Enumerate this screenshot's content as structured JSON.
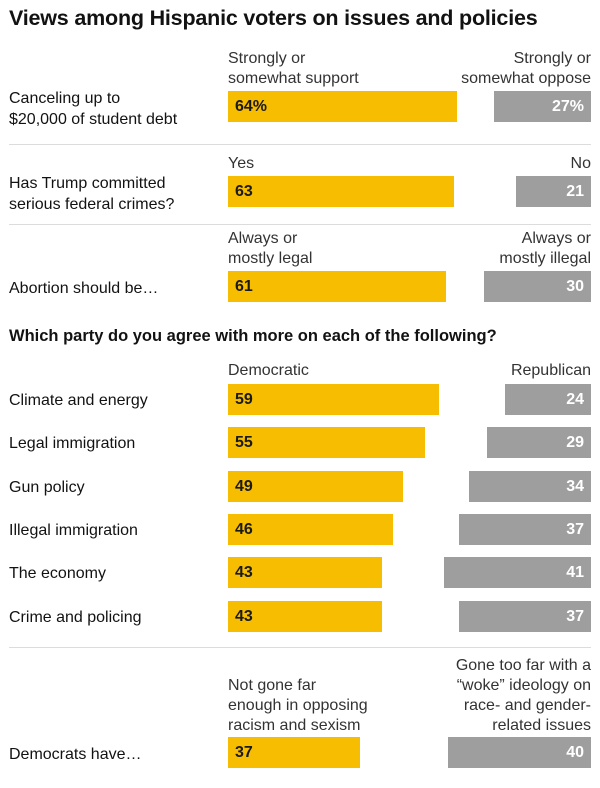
{
  "title": "Views among Hispanic voters on issues and policies",
  "colors": {
    "support": "#f7bd00",
    "oppose": "#9e9e9e",
    "oppose_text": "#ffffff"
  },
  "chart_data": {
    "type": "bar",
    "sections": [
      {
        "questions": [
          {
            "label": [
              "Canceling up to",
              "$20,000 of student debt"
            ],
            "left_header": [
              "Strongly or",
              "somewhat support"
            ],
            "right_header": [
              "Strongly or",
              "somewhat oppose"
            ],
            "left_value": 64,
            "left_text": "64%",
            "right_value": 27,
            "right_text": "27%"
          },
          {
            "label": [
              "Has Trump committed",
              "serious federal crimes?"
            ],
            "left_header": [
              "Yes"
            ],
            "right_header": [
              "No"
            ],
            "left_value": 63,
            "left_text": "63",
            "right_value": 21,
            "right_text": "21"
          },
          {
            "label": [
              "Abortion should be…"
            ],
            "left_header": [
              "Always or",
              "mostly legal"
            ],
            "right_header": [
              "Always or",
              "mostly illegal"
            ],
            "left_value": 61,
            "left_text": "61",
            "right_value": 30,
            "right_text": "30"
          }
        ]
      },
      {
        "subtitle": "Which party do you agree with more on each of the following?",
        "left_header": [
          "Democratic"
        ],
        "right_header": [
          "Republican"
        ],
        "categories": [
          "Climate and energy",
          "Legal immigration",
          "Gun policy",
          "Illegal immigration",
          "The economy",
          "Crime and policing"
        ],
        "series": [
          {
            "name": "Democratic",
            "values": [
              59,
              55,
              49,
              46,
              43,
              43
            ]
          },
          {
            "name": "Republican",
            "values": [
              24,
              29,
              34,
              37,
              41,
              37
            ]
          }
        ]
      },
      {
        "questions": [
          {
            "label": [
              "Democrats have…"
            ],
            "left_header": [
              "Not gone far",
              "enough in opposing",
              "racism and sexism"
            ],
            "right_header": [
              "Gone too far with a",
              "“woke” ideology on",
              "race- and gender-",
              "related issues"
            ],
            "left_value": 37,
            "left_text": "37",
            "right_value": 40,
            "right_text": "40"
          }
        ]
      }
    ]
  }
}
